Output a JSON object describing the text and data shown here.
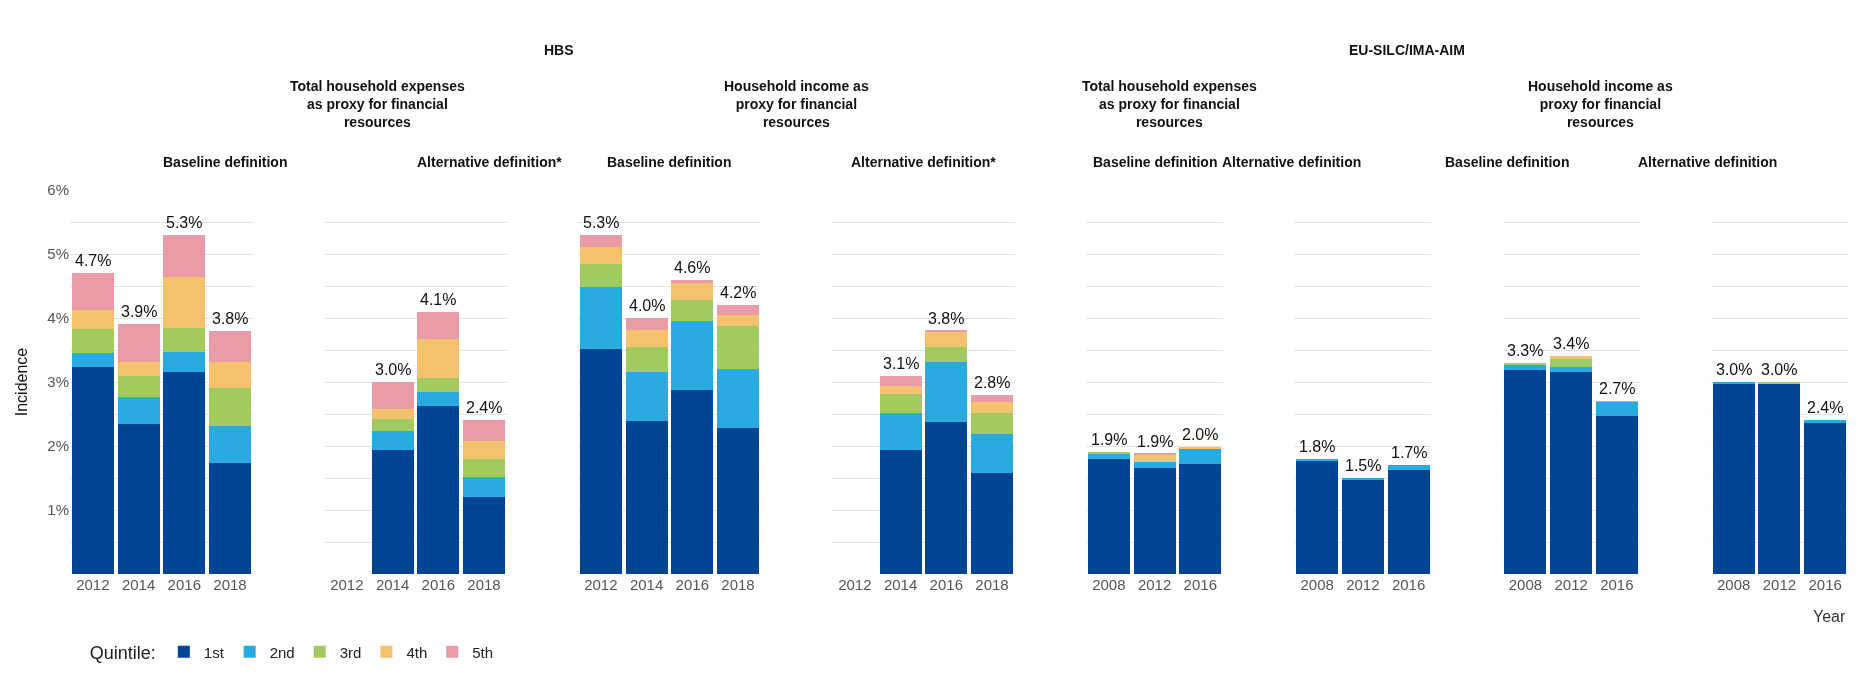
{
  "chart_data": [
    {
      "type": "bar",
      "stacked": true,
      "title": "Baseline definition",
      "ylabel": "Incidence",
      "annotations": [
        "HBS",
        "Total household expenses as proxy for financial resources"
      ],
      "legend": "bottom",
      "legend_title": "Quintile:",
      "categories": [
        "2012",
        "2014",
        "2016",
        "2018"
      ],
      "ylim": [
        0,
        6
      ],
      "yticks": [
        {
          "value": 0.5,
          "label": null
        },
        {
          "value": 1,
          "label": "1%"
        },
        {
          "value": 1.5,
          "label": null
        },
        {
          "value": 2,
          "label": "2%"
        },
        {
          "value": 2.5,
          "label": null
        },
        {
          "value": 3,
          "label": "3%"
        },
        {
          "value": 3.5,
          "label": null
        },
        {
          "value": 4,
          "label": "4%"
        },
        {
          "value": 4.5,
          "label": null
        },
        {
          "value": 5,
          "label": "5%"
        },
        {
          "value": 5.5,
          "label": null
        },
        {
          "value": 6,
          "label": "6%"
        }
      ],
      "grid": "y",
      "totals": [
        "4.7%",
        "3.9%",
        "5.3%",
        "3.8%"
      ],
      "series": [
        {
          "name": "1st",
          "color": "#004494",
          "values": [
            3.23,
            2.35,
            3.15,
            1.74
          ]
        },
        {
          "name": "2nd",
          "color": "#29abe2",
          "values": [
            0.23,
            0.42,
            0.32,
            0.58
          ]
        },
        {
          "name": "3rd",
          "color": "#a2ca5f",
          "values": [
            0.37,
            0.32,
            0.37,
            0.59
          ]
        },
        {
          "name": "4th",
          "color": "#f4c26f",
          "values": [
            0.3,
            0.22,
            0.8,
            0.4
          ]
        },
        {
          "name": "5th",
          "color": "#e99ca6",
          "values": [
            0.57,
            0.59,
            0.66,
            0.49
          ]
        }
      ]
    },
    {
      "type": "bar",
      "stacked": true,
      "title": "Alternative definition*",
      "tick_labels": "x",
      "categories": [
        "2012",
        "2014",
        "2016",
        "2018"
      ],
      "ylim": [
        0,
        6
      ],
      "yticks": [
        {
          "value": 0.5,
          "label": null
        },
        {
          "value": 1,
          "label": null
        },
        {
          "value": 1.5,
          "label": null
        },
        {
          "value": 2,
          "label": null
        },
        {
          "value": 2.5,
          "label": null
        },
        {
          "value": 3,
          "label": null
        },
        {
          "value": 3.5,
          "label": null
        },
        {
          "value": 4,
          "label": null
        },
        {
          "value": 4.5,
          "label": null
        },
        {
          "value": 5,
          "label": null
        },
        {
          "value": 5.5,
          "label": null
        },
        {
          "value": 6,
          "label": null
        }
      ],
      "grid": "y",
      "totals": [
        null,
        "3.0%",
        "4.1%",
        "2.4%"
      ],
      "series": [
        {
          "color": "#004494",
          "values": [
            null,
            1.94,
            2.63,
            1.2
          ]
        },
        {
          "color": "#29abe2",
          "values": [
            null,
            0.3,
            0.22,
            0.31
          ]
        },
        {
          "color": "#a2ca5f",
          "values": [
            null,
            0.18,
            0.22,
            0.29
          ]
        },
        {
          "color": "#f4c26f",
          "values": [
            null,
            0.16,
            0.6,
            0.28
          ]
        },
        {
          "color": "#e99ca6",
          "values": [
            null,
            0.42,
            0.43,
            0.32
          ]
        }
      ]
    },
    {
      "type": "bar",
      "stacked": true,
      "title": "Baseline definition",
      "annotations": [
        "Household income as proxy for financial resources"
      ],
      "tick_labels": "x",
      "categories": [
        "2012",
        "2014",
        "2016",
        "2018"
      ],
      "ylim": [
        0,
        6
      ],
      "yticks": [
        {
          "value": 0.5,
          "label": null
        },
        {
          "value": 1,
          "label": null
        },
        {
          "value": 1.5,
          "label": null
        },
        {
          "value": 2,
          "label": null
        },
        {
          "value": 2.5,
          "label": null
        },
        {
          "value": 3,
          "label": null
        },
        {
          "value": 3.5,
          "label": null
        },
        {
          "value": 4,
          "label": null
        },
        {
          "value": 4.5,
          "label": null
        },
        {
          "value": 5,
          "label": null
        },
        {
          "value": 5.5,
          "label": null
        },
        {
          "value": 6,
          "label": null
        }
      ],
      "grid": "y",
      "totals": [
        "5.3%",
        "4.0%",
        "4.6%",
        "4.2%"
      ],
      "series": [
        {
          "color": "#004494",
          "values": [
            3.51,
            2.39,
            2.88,
            2.28
          ]
        },
        {
          "color": "#29abe2",
          "values": [
            0.97,
            0.76,
            1.08,
            0.92
          ]
        },
        {
          "color": "#a2ca5f",
          "values": [
            0.36,
            0.4,
            0.32,
            0.67
          ]
        },
        {
          "color": "#f4c26f",
          "values": [
            0.27,
            0.27,
            0.27,
            0.18
          ]
        },
        {
          "color": "#e99ca6",
          "values": [
            0.19,
            0.18,
            0.05,
            0.15
          ]
        }
      ]
    },
    {
      "type": "bar",
      "stacked": true,
      "title": "Alternative definition*",
      "tick_labels": "x",
      "categories": [
        "2012",
        "2014",
        "2016",
        "2018"
      ],
      "ylim": [
        0,
        6
      ],
      "yticks": [
        {
          "value": 0.5,
          "label": null
        },
        {
          "value": 1,
          "label": null
        },
        {
          "value": 1.5,
          "label": null
        },
        {
          "value": 2,
          "label": null
        },
        {
          "value": 2.5,
          "label": null
        },
        {
          "value": 3,
          "label": null
        },
        {
          "value": 3.5,
          "label": null
        },
        {
          "value": 4,
          "label": null
        },
        {
          "value": 4.5,
          "label": null
        },
        {
          "value": 5,
          "label": null
        },
        {
          "value": 5.5,
          "label": null
        },
        {
          "value": 6,
          "label": null
        }
      ],
      "grid": "y",
      "totals": [
        null,
        "3.1%",
        "3.8%",
        "2.8%"
      ],
      "series": [
        {
          "color": "#004494",
          "values": [
            null,
            1.94,
            2.38,
            1.58
          ]
        },
        {
          "color": "#29abe2",
          "values": [
            null,
            0.58,
            0.93,
            0.61
          ]
        },
        {
          "color": "#a2ca5f",
          "values": [
            null,
            0.3,
            0.23,
            0.33
          ]
        },
        {
          "color": "#f4c26f",
          "values": [
            null,
            0.12,
            0.25,
            0.16
          ]
        },
        {
          "color": "#e99ca6",
          "values": [
            null,
            0.16,
            0.01,
            0.12
          ]
        }
      ]
    },
    {
      "type": "bar",
      "stacked": true,
      "title": "Baseline definition",
      "annotations": [
        "EU-SILC/IMA-AIM",
        "Total household expenses as proxy for financial resources"
      ],
      "tick_labels": "x",
      "categories": [
        "2008",
        "2012",
        "2016"
      ],
      "ylim": [
        0,
        6
      ],
      "yticks": [
        {
          "value": 0.5,
          "label": null
        },
        {
          "value": 1,
          "label": null
        },
        {
          "value": 1.5,
          "label": null
        },
        {
          "value": 2,
          "label": null
        },
        {
          "value": 2.5,
          "label": null
        },
        {
          "value": 3,
          "label": null
        },
        {
          "value": 3.5,
          "label": null
        },
        {
          "value": 4,
          "label": null
        },
        {
          "value": 4.5,
          "label": null
        },
        {
          "value": 5,
          "label": null
        },
        {
          "value": 5.5,
          "label": null
        },
        {
          "value": 6,
          "label": null
        }
      ],
      "grid": "y",
      "totals": [
        "1.9%",
        "1.9%",
        "2.0%"
      ],
      "series": [
        {
          "color": "#004494",
          "values": [
            1.8,
            1.66,
            1.72
          ]
        },
        {
          "color": "#29abe2",
          "values": [
            0.08,
            0.09,
            0.23
          ]
        },
        {
          "color": "#a2ca5f",
          "values": [
            0.02,
            null,
            null
          ]
        },
        {
          "color": "#f4c26f",
          "values": [
            0,
            0.11,
            0.04
          ]
        },
        {
          "color": "#e99ca6",
          "values": [
            0,
            0.02,
            0
          ]
        }
      ]
    },
    {
      "type": "bar",
      "stacked": true,
      "title": "Alternative definition",
      "tick_labels": "x",
      "categories": [
        "2008",
        "2012",
        "2016"
      ],
      "ylim": [
        0,
        6
      ],
      "yticks": [
        {
          "value": 0.5,
          "label": null
        },
        {
          "value": 1,
          "label": null
        },
        {
          "value": 1.5,
          "label": null
        },
        {
          "value": 2,
          "label": null
        },
        {
          "value": 2.5,
          "label": null
        },
        {
          "value": 3,
          "label": null
        },
        {
          "value": 3.5,
          "label": null
        },
        {
          "value": 4,
          "label": null
        },
        {
          "value": 4.5,
          "label": null
        },
        {
          "value": 5,
          "label": null
        },
        {
          "value": 5.5,
          "label": null
        },
        {
          "value": 6,
          "label": null
        }
      ],
      "grid": "y",
      "totals": [
        "1.8%",
        "1.5%",
        "1.7%"
      ],
      "series": [
        {
          "color": "#004494",
          "values": [
            1.76,
            1.48,
            1.63
          ]
        },
        {
          "color": "#29abe2",
          "values": [
            0.04,
            0.02,
            0.07
          ]
        }
      ]
    },
    {
      "type": "bar",
      "stacked": true,
      "title": "Baseline definition",
      "annotations": [
        "Household income as proxy for financial resources"
      ],
      "tick_labels": "x",
      "categories": [
        "2008",
        "2012",
        "2016"
      ],
      "ylim": [
        0,
        6
      ],
      "yticks": [
        {
          "value": 0.5,
          "label": null
        },
        {
          "value": 1,
          "label": null
        },
        {
          "value": 1.5,
          "label": null
        },
        {
          "value": 2,
          "label": null
        },
        {
          "value": 2.5,
          "label": null
        },
        {
          "value": 3,
          "label": null
        },
        {
          "value": 3.5,
          "label": null
        },
        {
          "value": 4,
          "label": null
        },
        {
          "value": 4.5,
          "label": null
        },
        {
          "value": 5,
          "label": null
        },
        {
          "value": 5.5,
          "label": null
        },
        {
          "value": 6,
          "label": null
        }
      ],
      "grid": "y",
      "totals": [
        "3.3%",
        "3.4%",
        "2.7%"
      ],
      "series": [
        {
          "color": "#004494",
          "values": [
            3.19,
            3.16,
            2.47
          ]
        },
        {
          "color": "#29abe2",
          "values": [
            0.09,
            0.08,
            0.22
          ]
        },
        {
          "color": "#a2ca5f",
          "values": [
            0.02,
            0.13,
            0.01
          ]
        },
        {
          "color": "#f4c26f",
          "values": [
            0,
            0.03,
            0
          ]
        }
      ]
    },
    {
      "type": "bar",
      "stacked": true,
      "title": "Alternative definition",
      "xlabel": "Year",
      "tick_labels": "x",
      "categories": [
        "2008",
        "2012",
        "2016"
      ],
      "ylim": [
        0,
        6
      ],
      "yticks": [
        {
          "value": 0.5,
          "label": null
        },
        {
          "value": 1,
          "label": null
        },
        {
          "value": 1.5,
          "label": null
        },
        {
          "value": 2,
          "label": null
        },
        {
          "value": 2.5,
          "label": null
        },
        {
          "value": 3,
          "label": null
        },
        {
          "value": 3.5,
          "label": null
        },
        {
          "value": 4,
          "label": null
        },
        {
          "value": 4.5,
          "label": null
        },
        {
          "value": 5,
          "label": null
        },
        {
          "value": 5.5,
          "label": null
        },
        {
          "value": 6,
          "label": null
        }
      ],
      "grid": "y",
      "totals": [
        "3.0%",
        "3.0%",
        "2.4%"
      ],
      "series": [
        {
          "color": "#004494",
          "values": [
            2.98,
            2.97,
            2.36
          ]
        },
        {
          "color": "#29abe2",
          "values": [
            0.02,
            0,
            0.04
          ]
        },
        {
          "color": "#a2ca5f",
          "values": [
            0,
            0.03,
            0
          ]
        }
      ]
    }
  ]
}
